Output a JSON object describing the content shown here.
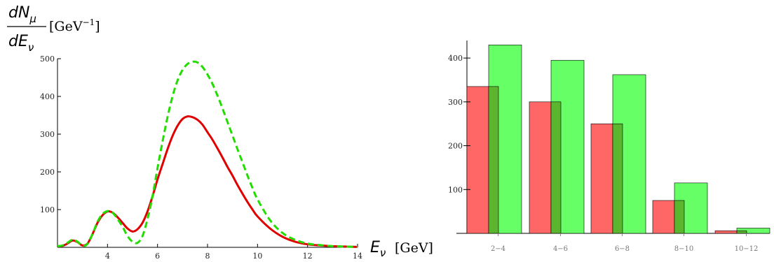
{
  "chart_data": [
    {
      "type": "line",
      "ylabel_parts": {
        "num_main": "dN",
        "num_sub": "μ",
        "den_main": "dE",
        "den_sub": "ν",
        "unit": "[GeV",
        "unit_exp": "−1",
        "unit_close": "]"
      },
      "xlabel_parts": {
        "main": "E",
        "sub": "ν",
        "unit": "[GeV]"
      },
      "xlim": [
        2,
        14
      ],
      "ylim": [
        0,
        500
      ],
      "xticks": [
        4,
        6,
        8,
        10,
        12,
        14
      ],
      "yticks": [
        100,
        200,
        300,
        400,
        500
      ],
      "series": [
        {
          "color": "#e00000",
          "style": "solid",
          "x": [
            2.0,
            2.2,
            2.4,
            2.6,
            2.8,
            3.0,
            3.2,
            3.4,
            3.6,
            3.8,
            4.0,
            4.2,
            4.4,
            4.6,
            4.8,
            5.0,
            5.2,
            5.4,
            5.6,
            5.8,
            6.0,
            6.2,
            6.4,
            6.6,
            6.8,
            7.0,
            7.2,
            7.4,
            7.6,
            7.8,
            8.0,
            8.2,
            8.4,
            8.6,
            8.8,
            9.0,
            9.2,
            9.4,
            9.6,
            9.8,
            10.0,
            10.5,
            11.0,
            11.5,
            12.0,
            12.5,
            13.0,
            13.5,
            14.0
          ],
          "y": [
            3,
            4,
            10,
            18,
            14,
            5,
            10,
            35,
            65,
            85,
            95,
            92,
            80,
            65,
            50,
            42,
            48,
            65,
            95,
            135,
            180,
            220,
            260,
            295,
            322,
            340,
            347,
            345,
            338,
            325,
            305,
            285,
            262,
            238,
            213,
            190,
            165,
            142,
            120,
            100,
            82,
            50,
            28,
            15,
            8,
            5,
            3,
            2,
            1
          ]
        },
        {
          "color": "#22dd00",
          "style": "dashed",
          "x": [
            2.0,
            2.2,
            2.4,
            2.6,
            2.8,
            3.0,
            3.2,
            3.4,
            3.6,
            3.8,
            4.0,
            4.2,
            4.4,
            4.6,
            4.8,
            5.0,
            5.2,
            5.4,
            5.6,
            5.8,
            6.0,
            6.2,
            6.4,
            6.6,
            6.8,
            7.0,
            7.2,
            7.4,
            7.6,
            7.8,
            8.0,
            8.2,
            8.4,
            8.6,
            8.8,
            9.0,
            9.2,
            9.4,
            9.6,
            9.8,
            10.0,
            10.5,
            11.0,
            11.5,
            12.0,
            12.5,
            13.0,
            13.5,
            14.0
          ],
          "y": [
            3,
            5,
            12,
            20,
            15,
            4,
            9,
            35,
            68,
            88,
            96,
            92,
            75,
            55,
            30,
            15,
            12,
            30,
            75,
            135,
            210,
            280,
            345,
            400,
            442,
            470,
            486,
            492,
            490,
            478,
            458,
            433,
            402,
            368,
            332,
            296,
            260,
            225,
            190,
            157,
            127,
            72,
            38,
            20,
            10,
            6,
            3,
            2,
            1
          ]
        }
      ]
    },
    {
      "type": "bar",
      "categories": [
        "2−4",
        "4−6",
        "6−8",
        "8−10",
        "10−12"
      ],
      "ylim": [
        0,
        440
      ],
      "yticks": [
        100,
        200,
        300,
        400
      ],
      "series": [
        {
          "color": "#ff6666",
          "values": [
            335,
            300,
            250,
            75,
            6
          ]
        },
        {
          "color": "#66ff66",
          "values": [
            430,
            395,
            362,
            115,
            12
          ]
        }
      ],
      "overlap_color": "#5cb52e"
    }
  ]
}
